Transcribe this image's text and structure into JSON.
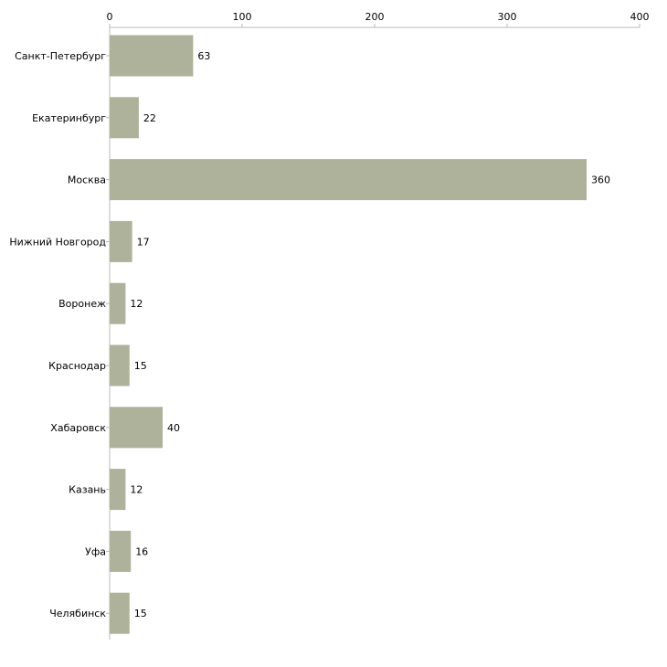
{
  "chart_data": {
    "type": "bar",
    "orientation": "horizontal",
    "title": "",
    "xlabel": "",
    "ylabel": "",
    "xlim": [
      0,
      400
    ],
    "ticks": [
      0,
      100,
      200,
      300,
      400
    ],
    "tick_labels": [
      "0",
      "100",
      "200",
      "300",
      "400"
    ],
    "axis_position": "top",
    "grid": false,
    "legend": "none",
    "categories": [
      "Санкт-Петербург",
      "Екатеринбург",
      "Москва",
      "Нижний Новгород",
      "Воронеж",
      "Краснодар",
      "Хабаровск",
      "Казань",
      "Уфа",
      "Челябинск"
    ],
    "values": [
      63,
      22,
      360,
      17,
      12,
      15,
      40,
      12,
      16,
      15
    ],
    "value_labels": [
      "63",
      "22",
      "360",
      "17",
      "12",
      "15",
      "40",
      "12",
      "16",
      "15"
    ],
    "colors": {
      "bar": "#aeb29a",
      "axis": "#bbbbbb",
      "text": "#000000"
    }
  }
}
